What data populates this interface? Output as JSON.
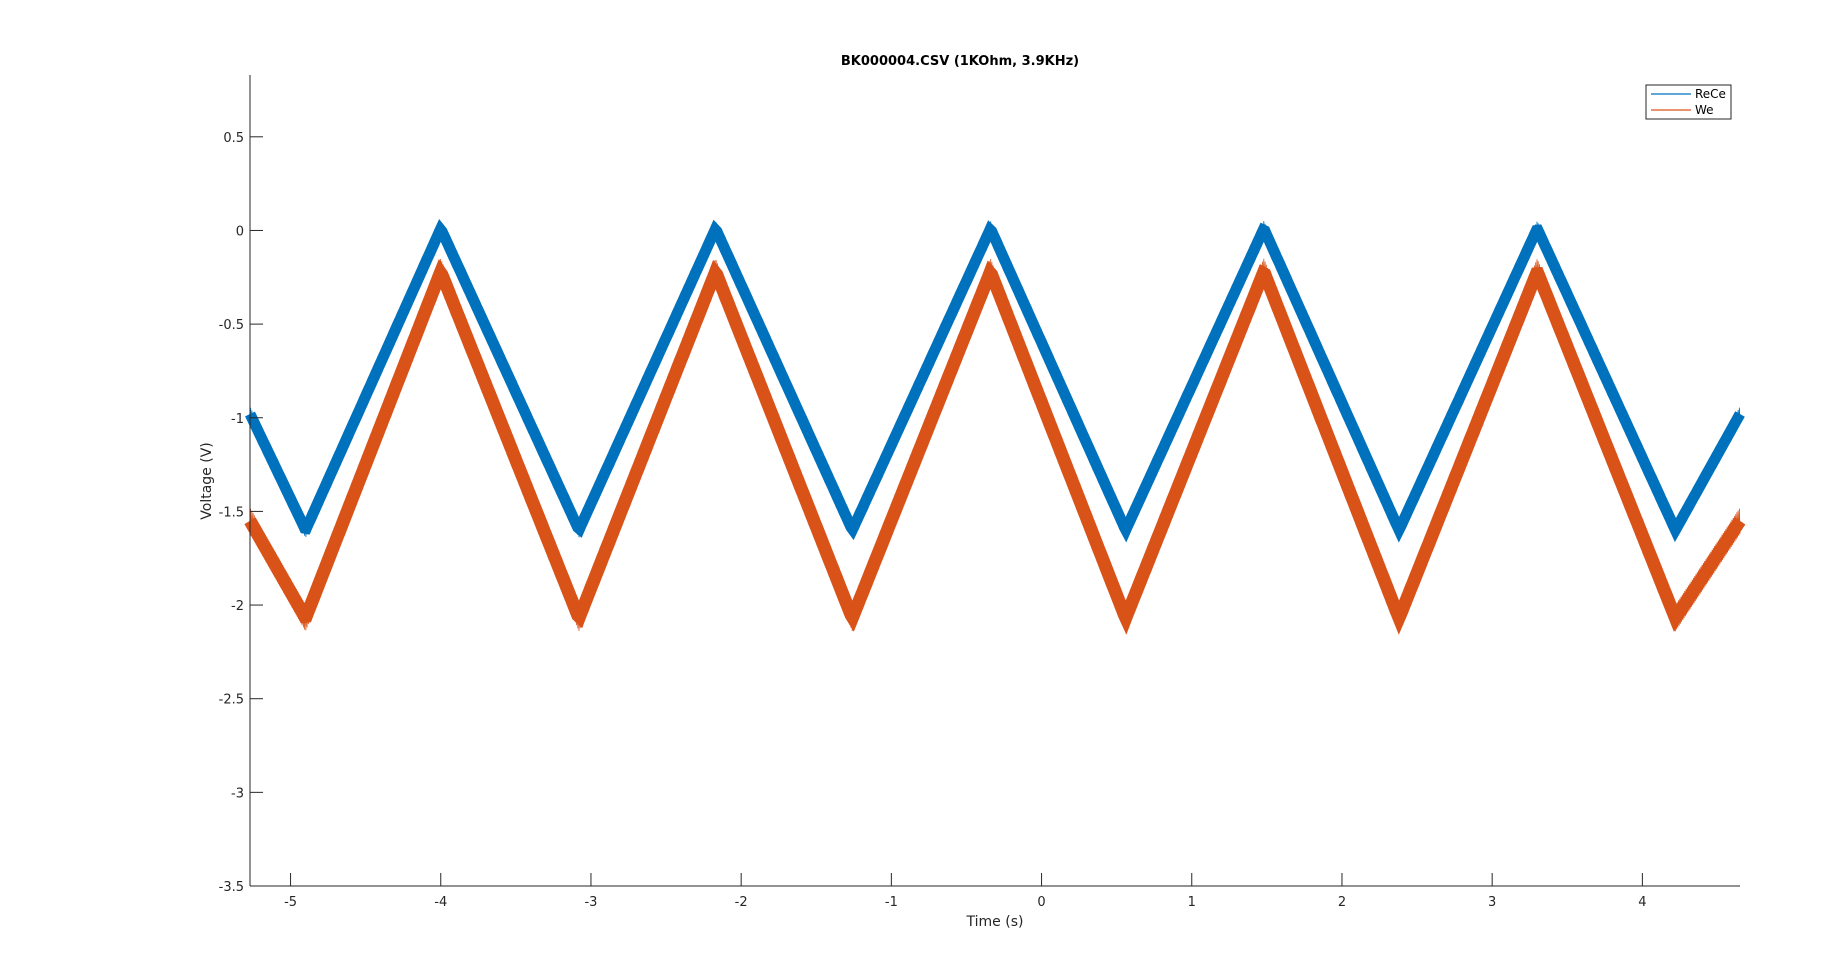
{
  "chart_data": {
    "type": "line",
    "title": "BK000004.CSV (1KOhm, 3.9KHz)",
    "xlabel": "Time (s)",
    "ylabel": "Voltage (V)",
    "xlim": [
      -5.27,
      4.65
    ],
    "ylim": [
      -3.5,
      0.83
    ],
    "xticks": [
      -5,
      -4,
      -3,
      -2,
      -1,
      0,
      1,
      2,
      3,
      4
    ],
    "yticks": [
      0.5,
      0,
      -0.5,
      -1,
      -1.5,
      -2,
      -2.5,
      -3,
      -3.5
    ],
    "grid": false,
    "legend_position": "top-right",
    "series": [
      {
        "name": "ReCe",
        "color": "#0072BD",
        "points": [
          [
            -5.27,
            -0.98
          ],
          [
            -4.9,
            -1.6
          ],
          [
            -4.0,
            0.01
          ],
          [
            -3.08,
            -1.6
          ],
          [
            -2.17,
            0.01
          ],
          [
            -1.26,
            -1.6
          ],
          [
            -0.34,
            0.01
          ],
          [
            0.56,
            -1.6
          ],
          [
            1.48,
            0.01
          ],
          [
            2.38,
            -1.6
          ],
          [
            3.3,
            0.01
          ],
          [
            4.22,
            -1.6
          ],
          [
            4.65,
            -0.98
          ]
        ]
      },
      {
        "name": "We",
        "color": "#D95319",
        "points": [
          [
            -5.27,
            -1.55
          ],
          [
            -4.9,
            -2.07
          ],
          [
            -4.0,
            -0.22
          ],
          [
            -3.08,
            -2.07
          ],
          [
            -2.17,
            -0.22
          ],
          [
            -1.26,
            -2.07
          ],
          [
            -0.34,
            -0.22
          ],
          [
            0.56,
            -2.07
          ],
          [
            1.48,
            -0.22
          ],
          [
            2.38,
            -2.07
          ],
          [
            3.3,
            -0.22
          ],
          [
            4.22,
            -2.07
          ],
          [
            4.65,
            -1.55
          ]
        ]
      }
    ]
  }
}
